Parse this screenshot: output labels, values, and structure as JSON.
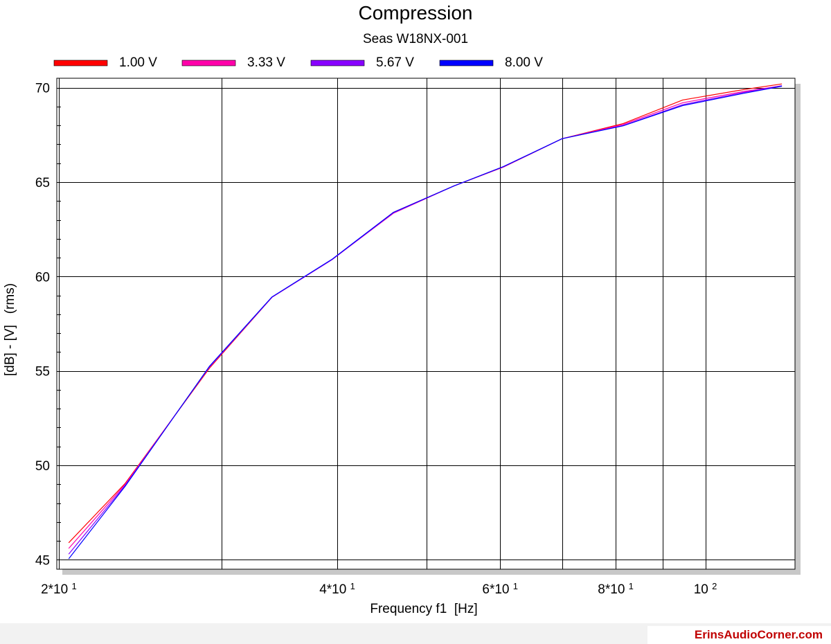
{
  "colors": {
    "background": "#ffffff",
    "plot_background": "#ffffff",
    "grid": "#000000",
    "shadow": "#c8c8c8",
    "brand": "#c00000"
  },
  "chart_data": {
    "type": "line",
    "title": "Compression",
    "subtitle": "Seas W18NX-001",
    "xlabel": "Frequency f1  [Hz]",
    "ylabel": "[dB] - [V]   (rms)",
    "x_scale": "log",
    "xlim": [
      19.9,
      125
    ],
    "ylim": [
      44.5,
      70.5
    ],
    "grid": true,
    "legend_position": "top",
    "x_major_ticks": [
      {
        "value": 20,
        "base": "2*10",
        "exp": "1"
      },
      {
        "value": 40,
        "base": "4*10",
        "exp": "1"
      },
      {
        "value": 60,
        "base": "6*10",
        "exp": "1"
      },
      {
        "value": 80,
        "base": "8*10",
        "exp": "1"
      },
      {
        "value": 100,
        "base": "10",
        "exp": "2"
      }
    ],
    "x_grid_values": [
      20,
      30,
      40,
      50,
      60,
      70,
      80,
      90,
      100
    ],
    "y_ticks": [
      {
        "value": 45,
        "label": "45"
      },
      {
        "value": 50,
        "label": "50"
      },
      {
        "value": 55,
        "label": "55"
      },
      {
        "value": 60,
        "label": "60"
      },
      {
        "value": 65,
        "label": "65"
      },
      {
        "value": 70,
        "label": "70"
      }
    ],
    "x": [
      20.5,
      23.6,
      29.1,
      34.0,
      39.5,
      46.0,
      53.5,
      60.5,
      70.0,
      81.5,
      94.5,
      110.0,
      121.0
    ],
    "series": [
      {
        "name": "1.00 V",
        "color": "#ff0000",
        "values": [
          45.9,
          49.05,
          55.15,
          58.9,
          60.9,
          63.4,
          64.8,
          65.8,
          67.3,
          68.1,
          69.35,
          69.9,
          70.2
        ]
      },
      {
        "name": "3.33 V",
        "color": "#ff00aa",
        "values": [
          45.6,
          49.0,
          55.2,
          58.9,
          60.9,
          63.35,
          64.8,
          65.8,
          67.3,
          68.05,
          69.2,
          69.8,
          70.1
        ]
      },
      {
        "name": "5.67 V",
        "color": "#8800ff",
        "values": [
          45.3,
          48.95,
          55.22,
          58.9,
          60.9,
          63.38,
          64.8,
          65.82,
          67.3,
          68.0,
          69.1,
          69.75,
          70.1
        ]
      },
      {
        "name": "8.00 V",
        "color": "#0000ff",
        "values": [
          45.05,
          48.9,
          55.25,
          58.92,
          60.92,
          63.4,
          64.8,
          65.82,
          67.3,
          67.98,
          69.05,
          69.7,
          70.08
        ]
      }
    ]
  },
  "footer": {
    "brand": "ErinsAudioCorner.com"
  }
}
